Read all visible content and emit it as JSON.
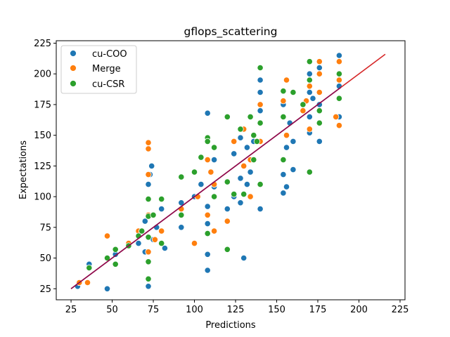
{
  "chart_data": {
    "type": "scatter",
    "title": "gflops_scattering",
    "xlabel": "Predictions",
    "ylabel": "Expectations",
    "xlim": [
      16,
      228
    ],
    "ylim": [
      16,
      227
    ],
    "xticks": [
      25,
      50,
      75,
      100,
      125,
      150,
      175,
      200,
      225
    ],
    "yticks": [
      25,
      50,
      75,
      100,
      125,
      150,
      175,
      200,
      225
    ],
    "grid": false,
    "legend_position": "top-left",
    "series": [
      {
        "name": "cu-COO",
        "color": "#1f77b4",
        "points": [
          [
            29,
            27
          ],
          [
            36,
            45
          ],
          [
            47,
            25
          ],
          [
            52,
            53
          ],
          [
            60,
            60
          ],
          [
            66,
            62
          ],
          [
            66,
            72
          ],
          [
            70,
            55
          ],
          [
            70,
            80
          ],
          [
            72,
            27
          ],
          [
            72,
            110
          ],
          [
            73,
            118
          ],
          [
            74,
            125
          ],
          [
            75,
            65
          ],
          [
            77,
            75
          ],
          [
            80,
            90
          ],
          [
            82,
            58
          ],
          [
            92,
            75
          ],
          [
            92,
            95
          ],
          [
            100,
            100
          ],
          [
            100,
            120
          ],
          [
            104,
            110
          ],
          [
            108,
            168
          ],
          [
            108,
            53
          ],
          [
            108,
            40
          ],
          [
            108,
            78
          ],
          [
            108,
            92
          ],
          [
            112,
            130
          ],
          [
            112,
            108
          ],
          [
            120,
            90
          ],
          [
            124,
            135
          ],
          [
            124,
            100
          ],
          [
            128,
            115
          ],
          [
            128,
            148
          ],
          [
            128,
            95
          ],
          [
            130,
            50
          ],
          [
            132,
            110
          ],
          [
            132,
            140
          ],
          [
            134,
            120
          ],
          [
            136,
            145
          ],
          [
            140,
            160
          ],
          [
            140,
            195
          ],
          [
            140,
            185
          ],
          [
            140,
            170
          ],
          [
            140,
            90
          ],
          [
            154,
            103
          ],
          [
            154,
            118
          ],
          [
            154,
            175
          ],
          [
            156,
            108
          ],
          [
            156,
            140
          ],
          [
            158,
            160
          ],
          [
            160,
            122
          ],
          [
            160,
            145
          ],
          [
            170,
            200
          ],
          [
            170,
            185
          ],
          [
            170,
            165
          ],
          [
            170,
            152
          ],
          [
            172,
            180
          ],
          [
            176,
            145
          ],
          [
            176,
            175
          ],
          [
            176,
            205
          ],
          [
            188,
            165
          ],
          [
            188,
            190
          ],
          [
            188,
            215
          ]
        ]
      },
      {
        "name": "Merge",
        "color": "#ff7f0e",
        "points": [
          [
            30,
            30
          ],
          [
            35,
            30
          ],
          [
            47,
            68
          ],
          [
            60,
            62
          ],
          [
            66,
            72
          ],
          [
            72,
            144
          ],
          [
            72,
            139
          ],
          [
            72,
            118
          ],
          [
            72,
            85
          ],
          [
            72,
            55
          ],
          [
            76,
            65
          ],
          [
            80,
            72
          ],
          [
            92,
            90
          ],
          [
            100,
            62
          ],
          [
            102,
            100
          ],
          [
            108,
            85
          ],
          [
            108,
            130
          ],
          [
            110,
            120
          ],
          [
            112,
            72
          ],
          [
            112,
            110
          ],
          [
            120,
            80
          ],
          [
            124,
            145
          ],
          [
            130,
            155
          ],
          [
            130,
            125
          ],
          [
            134,
            130
          ],
          [
            134,
            100
          ],
          [
            140,
            145
          ],
          [
            140,
            175
          ],
          [
            154,
            178
          ],
          [
            156,
            195
          ],
          [
            156,
            150
          ],
          [
            166,
            170
          ],
          [
            168,
            178
          ],
          [
            170,
            190
          ],
          [
            170,
            155
          ],
          [
            176,
            210
          ],
          [
            176,
            200
          ],
          [
            176,
            185
          ],
          [
            186,
            165
          ],
          [
            188,
            158
          ],
          [
            188,
            195
          ],
          [
            188,
            210
          ]
        ]
      },
      {
        "name": "cu-CSR",
        "color": "#2ca02c",
        "points": [
          [
            36,
            42
          ],
          [
            47,
            50
          ],
          [
            52,
            45
          ],
          [
            52,
            57
          ],
          [
            60,
            60
          ],
          [
            66,
            68
          ],
          [
            68,
            72
          ],
          [
            72,
            98
          ],
          [
            72,
            84
          ],
          [
            72,
            67
          ],
          [
            72,
            47
          ],
          [
            72,
            33
          ],
          [
            75,
            85
          ],
          [
            80,
            98
          ],
          [
            80,
            62
          ],
          [
            92,
            116
          ],
          [
            92,
            85
          ],
          [
            100,
            120
          ],
          [
            104,
            132
          ],
          [
            108,
            148
          ],
          [
            108,
            145
          ],
          [
            108,
            70
          ],
          [
            112,
            140
          ],
          [
            112,
            100
          ],
          [
            120,
            57
          ],
          [
            120,
            112
          ],
          [
            120,
            165
          ],
          [
            124,
            102
          ],
          [
            128,
            155
          ],
          [
            130,
            102
          ],
          [
            134,
            165
          ],
          [
            136,
            150
          ],
          [
            136,
            130
          ],
          [
            138,
            145
          ],
          [
            140,
            205
          ],
          [
            140,
            160
          ],
          [
            140,
            110
          ],
          [
            154,
            186
          ],
          [
            154,
            165
          ],
          [
            154,
            130
          ],
          [
            160,
            185
          ],
          [
            166,
            175
          ],
          [
            170,
            210
          ],
          [
            170,
            195
          ],
          [
            170,
            120
          ],
          [
            176,
            160
          ],
          [
            176,
            170
          ],
          [
            188,
            180
          ],
          [
            188,
            200
          ]
        ]
      }
    ],
    "reference_lines": [
      {
        "name": "",
        "color": "#d62728",
        "points": [
          [
            25,
            25
          ],
          [
            216,
            216
          ]
        ]
      },
      {
        "name": "",
        "color": "#8b0a50",
        "points": [
          [
            25,
            25
          ],
          [
            189,
            189
          ]
        ]
      }
    ]
  }
}
